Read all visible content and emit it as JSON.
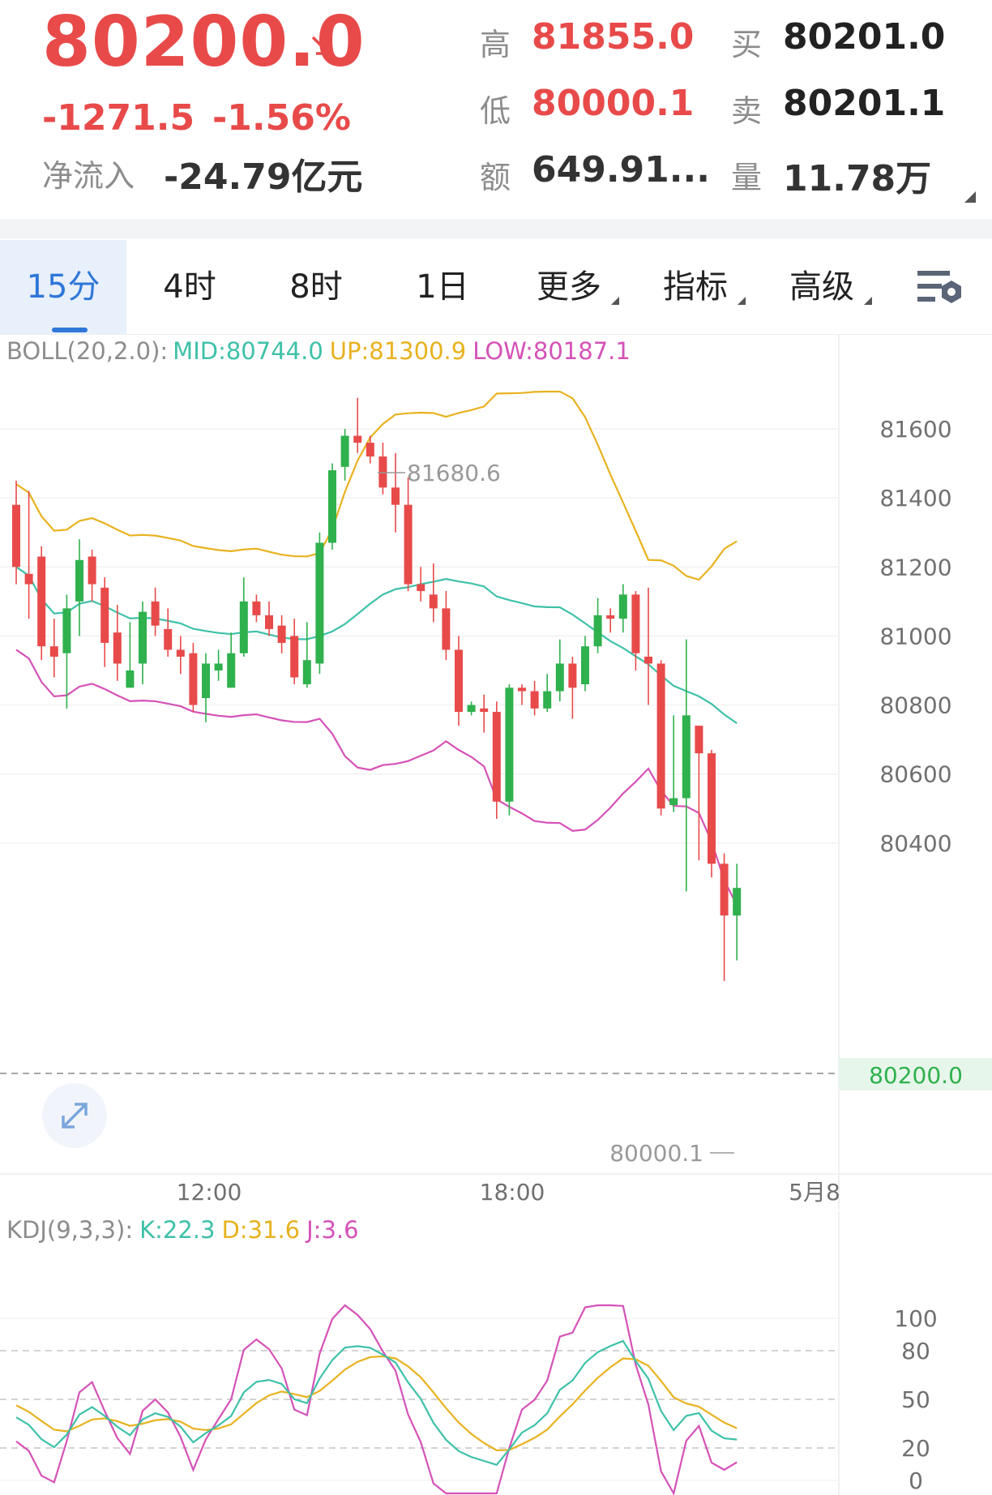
{
  "header": {
    "price": "80200.0",
    "change": "-1271.5",
    "change_pct": "-1.56%",
    "net_inflow_label": "净流入",
    "net_inflow": "-24.79亿元",
    "high_label": "高",
    "high": "81855.0",
    "low_label": "低",
    "low": "80000.1",
    "amount_label": "额",
    "amount": "649.91...",
    "buy_label": "买",
    "buy": "80201.0",
    "sell_label": "卖",
    "sell": "80201.1",
    "volume_label": "量",
    "volume": "11.78万"
  },
  "tabs": [
    {
      "label": "15分",
      "active": true
    },
    {
      "label": "4时"
    },
    {
      "label": "8时"
    },
    {
      "label": "1日"
    },
    {
      "label": "更多",
      "dropdown": true
    },
    {
      "label": "指标",
      "dropdown": true
    },
    {
      "label": "高级",
      "dropdown": true
    }
  ],
  "settings_icon": "chart-settings-icon",
  "colors": {
    "up": "#2fb14d",
    "down": "#e84a4a",
    "mid": "#3ec1a8",
    "upper": "#e8b21f",
    "lower": "#d552b7",
    "accent": "#2f77d9"
  },
  "boll": {
    "name": "BOLL(20,2.0):",
    "mid": "MID:80744.0",
    "up": "UP:81300.9",
    "low": "LOW:80187.1"
  },
  "price_axis": [
    "81600",
    "81400",
    "81200",
    "81000",
    "80800",
    "80600",
    "80400"
  ],
  "current_price_tag": "80200.0",
  "high_marker": "81680.6",
  "low_marker": "80000.1",
  "time_axis": [
    "12:00",
    "18:00",
    "5月8"
  ],
  "kdj": {
    "name": "KDJ(9,3,3):",
    "k": "K:22.3",
    "d": "D:31.6",
    "j": "J:3.6",
    "axis": [
      "100",
      "80",
      "50",
      "20",
      "0"
    ]
  },
  "chart_data": {
    "type": "candlestick",
    "price_range": [
      79700,
      81900
    ],
    "candles": [
      [
        81380,
        81200,
        81450,
        81150
      ],
      [
        81180,
        81150,
        81420,
        81050
      ],
      [
        81230,
        80970,
        81260,
        80930
      ],
      [
        80970,
        80940,
        81050,
        80880
      ],
      [
        80950,
        81080,
        81120,
        80790
      ],
      [
        81100,
        81220,
        81280,
        81000
      ],
      [
        81230,
        81150,
        81250,
        81100
      ],
      [
        81140,
        80980,
        81170,
        80910
      ],
      [
        81010,
        80920,
        81090,
        80870
      ],
      [
        80850,
        80900,
        81040,
        80850
      ],
      [
        80920,
        81070,
        81100,
        80860
      ],
      [
        81100,
        81030,
        81140,
        81000
      ],
      [
        81020,
        80960,
        81080,
        80940
      ],
      [
        80960,
        80940,
        81000,
        80890
      ],
      [
        80950,
        80800,
        80980,
        80780
      ],
      [
        80820,
        80920,
        80950,
        80750
      ],
      [
        80900,
        80920,
        80960,
        80870
      ],
      [
        80850,
        80950,
        81010,
        80850
      ],
      [
        80950,
        81100,
        81170,
        80940
      ],
      [
        81100,
        81060,
        81120,
        81040
      ],
      [
        81060,
        81020,
        81100,
        81000
      ],
      [
        81030,
        80980,
        81060,
        80950
      ],
      [
        81000,
        80880,
        81050,
        80860
      ],
      [
        80860,
        80930,
        81040,
        80850
      ],
      [
        80920,
        81270,
        81300,
        80890
      ],
      [
        81270,
        81480,
        81500,
        81250
      ],
      [
        81490,
        81580,
        81600,
        81450
      ],
      [
        81580,
        81560,
        81690,
        81530
      ],
      [
        81560,
        81520,
        81580,
        81500
      ],
      [
        81520,
        81430,
        81560,
        81410
      ],
      [
        81430,
        81380,
        81530,
        81300
      ],
      [
        81380,
        81150,
        81460,
        81130
      ],
      [
        81150,
        81130,
        81200,
        81100
      ],
      [
        81120,
        81080,
        81210,
        81040
      ],
      [
        81080,
        80960,
        81130,
        80930
      ],
      [
        80960,
        80780,
        81000,
        80740
      ],
      [
        80780,
        80800,
        80810,
        80770
      ],
      [
        80790,
        80780,
        80830,
        80720
      ],
      [
        80780,
        80520,
        80810,
        80470
      ],
      [
        80520,
        80850,
        80860,
        80480
      ],
      [
        80850,
        80840,
        80860,
        80800
      ],
      [
        80840,
        80790,
        80870,
        80770
      ],
      [
        80790,
        80840,
        80890,
        80780
      ],
      [
        80840,
        80920,
        80990,
        80810
      ],
      [
        80920,
        80850,
        80940,
        80760
      ],
      [
        80860,
        80970,
        81000,
        80840
      ],
      [
        80970,
        81060,
        81110,
        80950
      ],
      [
        81060,
        81050,
        81080,
        81010
      ],
      [
        81050,
        81120,
        81150,
        81010
      ],
      [
        81120,
        80950,
        81130,
        80900
      ],
      [
        80940,
        80920,
        81140,
        80800
      ],
      [
        80920,
        80500,
        80930,
        80480
      ],
      [
        80510,
        80530,
        80770,
        80490
      ],
      [
        80530,
        80770,
        80990,
        80260
      ],
      [
        80740,
        80660,
        80730,
        80350
      ],
      [
        80660,
        80340,
        80670,
        80300
      ],
      [
        80340,
        80190,
        80370,
        80000
      ],
      [
        80190,
        80270,
        80340,
        80060
      ]
    ]
  }
}
